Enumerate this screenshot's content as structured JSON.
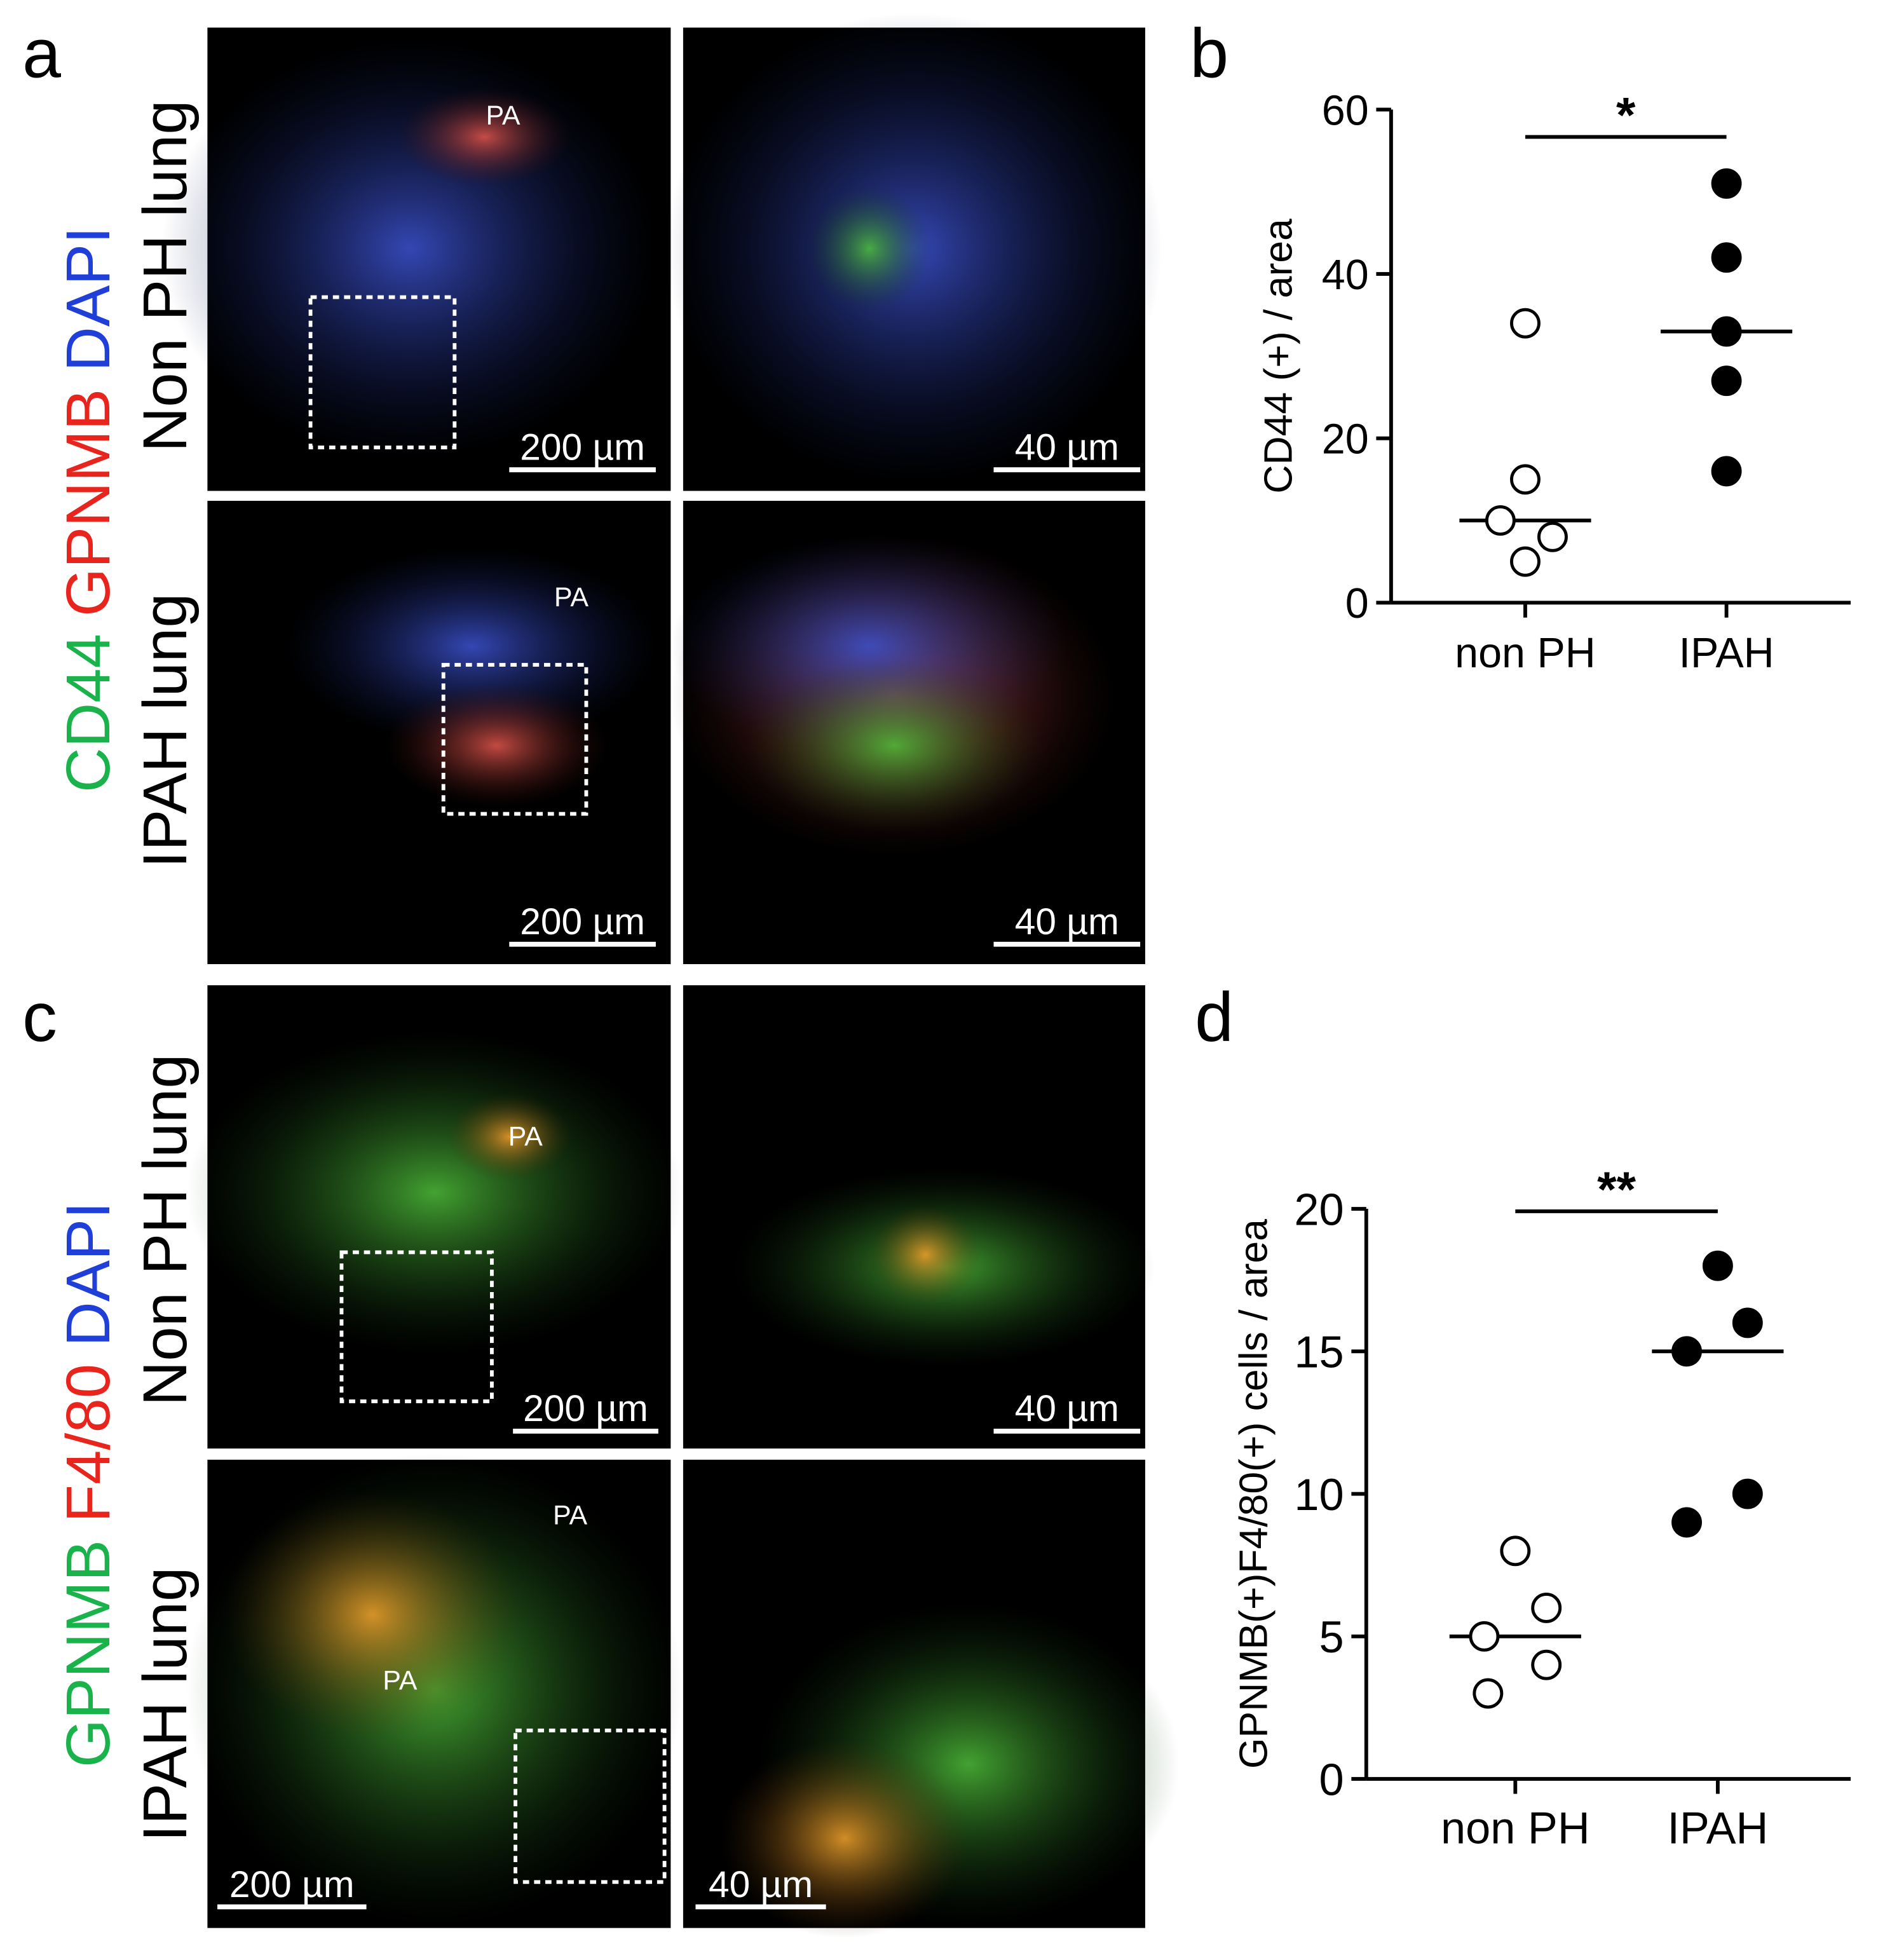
{
  "panel_a": {
    "letter": "a",
    "stains": [
      {
        "text": "CD44",
        "color": "#19b24b"
      },
      {
        "text": "GPNMB",
        "color": "#e8241c"
      },
      {
        "text": "DAPI",
        "color": "#1f3fd8"
      }
    ],
    "rows": [
      "Non PH lung",
      "IPAH lung"
    ],
    "scale_bars": [
      "200 µm",
      "40 µm",
      "200 µm",
      "40 µm"
    ],
    "pa_labels": [
      "PA",
      "PA"
    ]
  },
  "panel_c": {
    "letter": "c",
    "stains": [
      {
        "text": "GPNMB",
        "color": "#19b24b"
      },
      {
        "text": "F4/80",
        "color": "#e8241c"
      },
      {
        "text": "DAPI",
        "color": "#1f3fd8"
      }
    ],
    "rows": [
      "Non PH lung",
      "IPAH lung"
    ],
    "scale_bars": [
      "200 µm",
      "40 µm",
      "200 µm",
      "40 µm"
    ],
    "pa_labels": [
      "PA",
      "PA",
      "PA"
    ]
  },
  "chart_data": [
    {
      "type": "scatter",
      "panel_label": "b",
      "y_label": "CD44 (+) / area",
      "categories": [
        "non PH",
        "IPAH"
      ],
      "groups": [
        [
          34,
          15,
          10,
          8,
          5
        ],
        [
          51,
          42,
          33,
          27,
          16
        ]
      ],
      "medians": [
        10,
        33
      ],
      "marker_fill": [
        "#ffffff",
        "#000000"
      ],
      "significance": "*",
      "ylim": [
        0,
        60
      ],
      "yticks": [
        0,
        20,
        40,
        60
      ]
    },
    {
      "type": "scatter",
      "panel_label": "d",
      "y_label": "GPNMB(+)F4/80(+) cells / area",
      "categories": [
        "non PH",
        "IPAH"
      ],
      "groups": [
        [
          8,
          6,
          5,
          4,
          3
        ],
        [
          18,
          16,
          15,
          10,
          9
        ]
      ],
      "medians": [
        5,
        15
      ],
      "marker_fill": [
        "#ffffff",
        "#000000"
      ],
      "significance": "**",
      "ylim": [
        0,
        20
      ],
      "yticks": [
        0,
        5,
        10,
        15,
        20
      ]
    }
  ]
}
